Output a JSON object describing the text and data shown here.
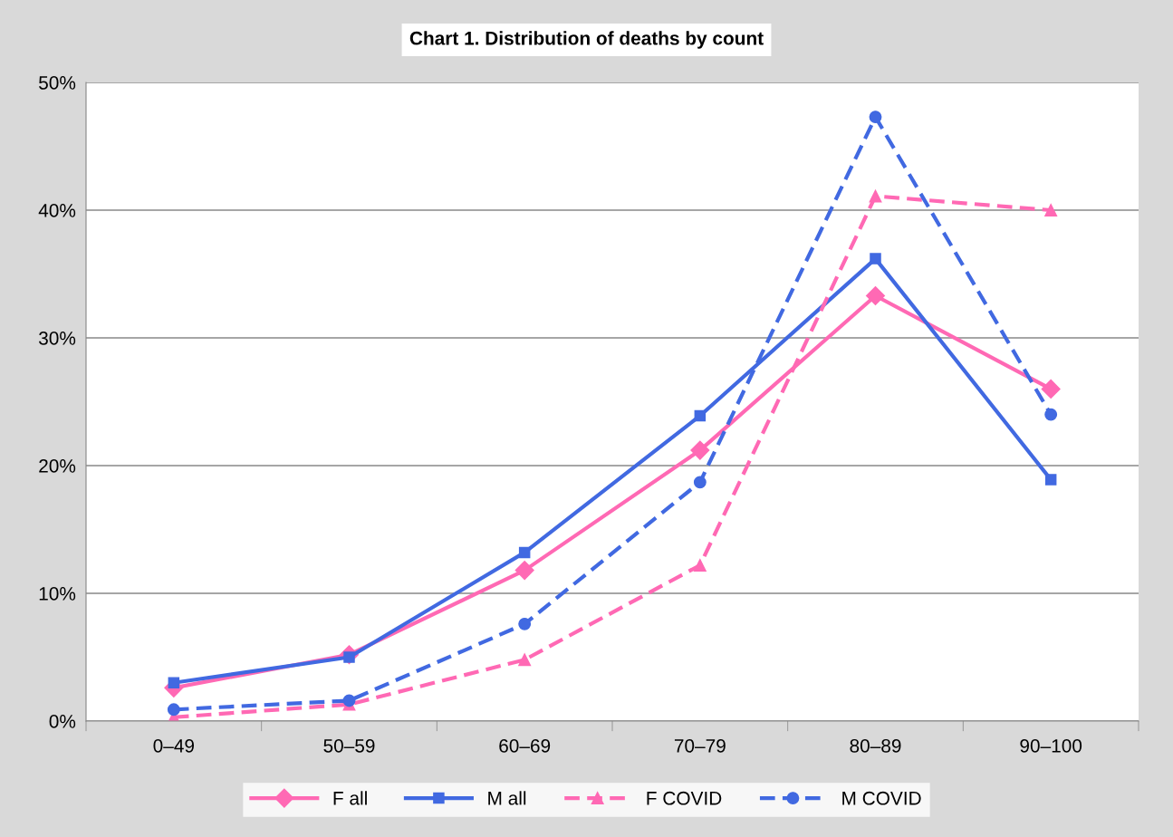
{
  "chart_data": {
    "type": "line",
    "title": "Chart 1. Distribution of deaths by count",
    "categories": [
      "0–49",
      "50–59",
      "60–69",
      "70–79",
      "80–89",
      "90–100"
    ],
    "series": [
      {
        "name": "F all",
        "color": "#ff69b4",
        "marker": "diamond",
        "line_style": "solid",
        "values": [
          2.6,
          5.2,
          11.8,
          21.2,
          33.3,
          26.0
        ]
      },
      {
        "name": "M all",
        "color": "#4169e1",
        "marker": "square",
        "line_style": "solid",
        "values": [
          3.0,
          5.0,
          13.2,
          23.9,
          36.2,
          18.9
        ]
      },
      {
        "name": "F COVID",
        "color": "#ff69b4",
        "marker": "triangle",
        "line_style": "dashed",
        "values": [
          0.3,
          1.3,
          4.8,
          12.2,
          41.1,
          40.0
        ]
      },
      {
        "name": "M COVID",
        "color": "#4169e1",
        "marker": "circle",
        "line_style": "dashed",
        "values": [
          0.9,
          1.6,
          7.6,
          18.7,
          47.3,
          24.0
        ]
      }
    ],
    "ylim": [
      0,
      50
    ],
    "yticks": [
      {
        "value": 0,
        "label": "0%"
      },
      {
        "value": 10,
        "label": "10%"
      },
      {
        "value": 20,
        "label": "20%"
      },
      {
        "value": 30,
        "label": "30%"
      },
      {
        "value": 40,
        "label": "40%"
      },
      {
        "value": 50,
        "label": "50%"
      }
    ],
    "grid": "y",
    "legend": "bottom"
  }
}
